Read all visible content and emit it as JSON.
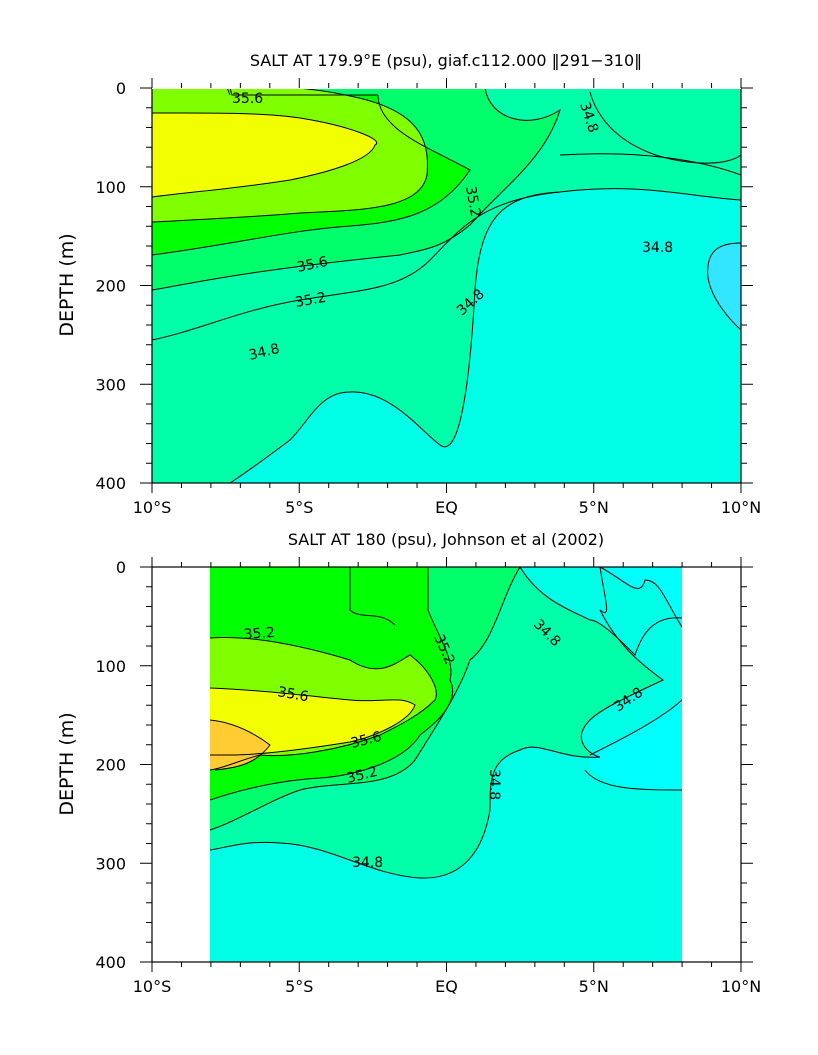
{
  "colors": {
    "band_cyan_bright": "#00ffff",
    "band_cyan": "#00ffe6",
    "band_aqua": "#00ffa8",
    "band_green_light": "#00ff6a",
    "band_green": "#00ff00",
    "band_lime": "#80ff00",
    "band_yellow": "#f2ff00",
    "band_orange": "#ffcc33",
    "blue_pocket": "#33e6ff"
  },
  "chart_data": [
    {
      "type": "contour",
      "title": "SALT AT 179.9°E (psu), giaf.c112.000 ‖291−310‖",
      "xlabel": "",
      "ylabel": "DEPTH (m)",
      "x_ticks": [
        "10°S",
        "5°S",
        "EQ",
        "5°N",
        "10°N"
      ],
      "x_range": [
        -10,
        10
      ],
      "y_ticks": [
        "0",
        "100",
        "200",
        "300",
        "400"
      ],
      "y_range": [
        0,
        400
      ],
      "y_inverted": true,
      "contour_levels": [
        34.6,
        34.8,
        35.0,
        35.2,
        35.4,
        35.6
      ],
      "contour_labels": [
        {
          "text": "35.6",
          "lat": -6.6,
          "depth": 110
        },
        {
          "text": "35.6",
          "lat": -4.5,
          "depth": 174
        },
        {
          "text": "35.2",
          "lat": -5.5,
          "depth": 209
        },
        {
          "text": "35.2",
          "lat": 0.7,
          "depth": 122
        },
        {
          "text": "34.8",
          "lat": -6.8,
          "depth": 262
        },
        {
          "text": "34.8",
          "lat": 0.9,
          "depth": 216
        },
        {
          "text": "34.8",
          "lat": 7.2,
          "depth": 32
        },
        {
          "text": "34.8",
          "lat": 7.7,
          "depth": 158
        }
      ]
    },
    {
      "type": "contour",
      "title": "SALT AT 180 (psu), Johnson et al (2002)",
      "xlabel": "",
      "ylabel": "DEPTH (m)",
      "x_ticks": [
        "10°S",
        "5°S",
        "EQ",
        "5°N",
        "10°N"
      ],
      "x_range": [
        -10,
        10
      ],
      "y_ticks": [
        "0",
        "100",
        "200",
        "300",
        "400"
      ],
      "y_range": [
        0,
        400
      ],
      "y_inverted": true,
      "data_extent_lat": [
        -8,
        8
      ],
      "contour_levels": [
        34.6,
        34.8,
        35.0,
        35.2,
        35.4,
        35.6,
        35.8
      ],
      "contour_labels": [
        {
          "text": "35.2",
          "lat": -7.0,
          "depth": 69
        },
        {
          "text": "35.6",
          "lat": -5.6,
          "depth": 126
        },
        {
          "text": "35.6",
          "lat": -3.1,
          "depth": 175
        },
        {
          "text": "35.2",
          "lat": -4.6,
          "depth": 195
        },
        {
          "text": "35.2",
          "lat": -0.2,
          "depth": 80
        },
        {
          "text": "34.8",
          "lat": 3.4,
          "depth": 64
        },
        {
          "text": "34.8",
          "lat": 6.3,
          "depth": 130
        },
        {
          "text": "34.8",
          "lat": 1.1,
          "depth": 210
        },
        {
          "text": "34.8",
          "lat": -3.7,
          "depth": 298
        }
      ]
    }
  ]
}
